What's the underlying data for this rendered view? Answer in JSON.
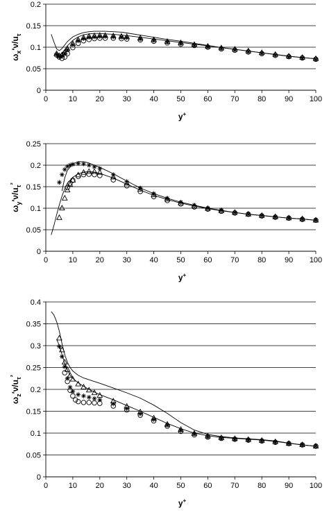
{
  "chart_data": [
    {
      "type": "scatter",
      "xlabel": "y+",
      "ylabel": "ωx′ν/uτ",
      "xlim": [
        0,
        100
      ],
      "ylim": [
        0,
        0.2
      ],
      "xticks": [
        "0",
        "10",
        "20",
        "30",
        "40",
        "50",
        "60",
        "70",
        "80",
        "90",
        "100"
      ],
      "yticks": [
        "0",
        "0.05",
        "0.1",
        "0.15",
        "0.2"
      ],
      "grid": "horizontal",
      "series": [
        {
          "marker": "line",
          "x": [
            2,
            3,
            4,
            5,
            6,
            7,
            8,
            10,
            12,
            14,
            16,
            18,
            20,
            22,
            25,
            28,
            30,
            35,
            40,
            45,
            50,
            55,
            60,
            65,
            70,
            75,
            80,
            85,
            90,
            95,
            100
          ],
          "y": [
            0.13,
            0.112,
            0.096,
            0.092,
            0.097,
            0.105,
            0.113,
            0.124,
            0.13,
            0.134,
            0.136,
            0.137,
            0.137,
            0.137,
            0.136,
            0.135,
            0.133,
            0.128,
            0.123,
            0.118,
            0.114,
            0.109,
            0.104,
            0.099,
            0.095,
            0.091,
            0.087,
            0.083,
            0.079,
            0.076,
            0.073
          ]
        },
        {
          "marker": "line",
          "x": [
            4,
            5,
            6,
            7,
            8,
            10,
            12,
            14,
            16,
            18,
            20,
            22,
            25,
            28,
            30,
            35,
            40,
            45,
            50,
            55,
            60,
            65,
            70,
            75,
            80,
            85,
            90,
            95,
            100
          ],
          "y": [
            0.085,
            0.082,
            0.086,
            0.094,
            0.103,
            0.116,
            0.124,
            0.129,
            0.131,
            0.132,
            0.132,
            0.131,
            0.13,
            0.128,
            0.127,
            0.123,
            0.119,
            0.115,
            0.111,
            0.107,
            0.103,
            0.099,
            0.095,
            0.091,
            0.087,
            0.083,
            0.079,
            0.076,
            0.073
          ]
        },
        {
          "marker": "triangle",
          "x": [
            4,
            5,
            6,
            7,
            8,
            10,
            12,
            14,
            16,
            18,
            20,
            22,
            25,
            28,
            30,
            35,
            40,
            45,
            50,
            55,
            60,
            65,
            70,
            75,
            80,
            85,
            90,
            95,
            100
          ],
          "y": [
            0.085,
            0.08,
            0.082,
            0.088,
            0.096,
            0.108,
            0.117,
            0.122,
            0.125,
            0.126,
            0.127,
            0.127,
            0.126,
            0.125,
            0.124,
            0.121,
            0.117,
            0.113,
            0.11,
            0.106,
            0.102,
            0.098,
            0.095,
            0.091,
            0.087,
            0.083,
            0.079,
            0.076,
            0.073
          ]
        },
        {
          "marker": "star",
          "x": [
            4,
            5,
            6,
            7,
            8,
            10,
            12,
            14,
            16,
            18,
            20,
            22,
            25,
            28,
            30,
            35,
            40,
            45,
            50,
            55,
            60,
            65,
            70,
            75,
            80,
            85,
            90,
            95,
            100
          ],
          "y": [
            0.083,
            0.078,
            0.08,
            0.086,
            0.094,
            0.106,
            0.115,
            0.12,
            0.123,
            0.124,
            0.125,
            0.125,
            0.124,
            0.123,
            0.122,
            0.119,
            0.116,
            0.112,
            0.109,
            0.105,
            0.101,
            0.097,
            0.094,
            0.09,
            0.086,
            0.082,
            0.078,
            0.075,
            0.072
          ]
        },
        {
          "marker": "circle",
          "x": [
            4,
            5,
            6,
            7,
            8,
            10,
            12,
            14,
            16,
            18,
            20,
            22,
            25,
            28,
            30,
            35,
            40,
            45,
            50,
            55,
            60,
            65,
            70,
            75,
            80,
            85,
            90,
            95,
            100
          ],
          "y": [
            0.082,
            0.077,
            0.074,
            0.077,
            0.085,
            0.099,
            0.109,
            0.115,
            0.118,
            0.12,
            0.121,
            0.121,
            0.121,
            0.12,
            0.119,
            0.117,
            0.114,
            0.11,
            0.107,
            0.104,
            0.1,
            0.096,
            0.093,
            0.089,
            0.085,
            0.081,
            0.078,
            0.075,
            0.072
          ]
        }
      ]
    },
    {
      "type": "scatter",
      "xlabel": "y+",
      "ylabel": "ωy′ν/uτ²",
      "xlim": [
        0,
        100
      ],
      "ylim": [
        0,
        0.25
      ],
      "xticks": [
        "0",
        "10",
        "20",
        "30",
        "40",
        "50",
        "60",
        "70",
        "80",
        "90",
        "100"
      ],
      "yticks": [
        "0",
        "0.05",
        "0.1",
        "0.15",
        "0.2",
        "0.25"
      ],
      "grid": "horizontal",
      "series": [
        {
          "marker": "line",
          "x": [
            2,
            3,
            4,
            5,
            6,
            7,
            8,
            10,
            12,
            14,
            16,
            18,
            20,
            25,
            30,
            35,
            40,
            45,
            50,
            55,
            60,
            65,
            70,
            75,
            80,
            85,
            90,
            95,
            100
          ],
          "y": [
            0.038,
            0.06,
            0.085,
            0.108,
            0.128,
            0.145,
            0.158,
            0.172,
            0.18,
            0.184,
            0.185,
            0.184,
            0.181,
            0.17,
            0.156,
            0.142,
            0.13,
            0.12,
            0.112,
            0.105,
            0.099,
            0.094,
            0.09,
            0.086,
            0.083,
            0.08,
            0.077,
            0.075,
            0.072
          ]
        },
        {
          "marker": "line",
          "x": [
            6,
            7,
            8,
            10,
            12,
            14,
            16,
            18,
            20,
            25,
            30,
            35,
            40,
            45,
            50,
            55,
            60,
            65,
            70,
            75,
            80,
            85,
            90,
            95,
            100
          ],
          "y": [
            0.14,
            0.17,
            0.188,
            0.203,
            0.208,
            0.208,
            0.205,
            0.2,
            0.195,
            0.18,
            0.163,
            0.147,
            0.134,
            0.123,
            0.114,
            0.107,
            0.1,
            0.095,
            0.09,
            0.086,
            0.083,
            0.08,
            0.077,
            0.075,
            0.072
          ]
        },
        {
          "marker": "triangle",
          "x": [
            5,
            6,
            7,
            8,
            9,
            10,
            12,
            14,
            16,
            18,
            20,
            25,
            30,
            35,
            40,
            45,
            50,
            55,
            60,
            65,
            70,
            75,
            80,
            85,
            90,
            95,
            100
          ],
          "y": [
            0.078,
            0.1,
            0.123,
            0.142,
            0.155,
            0.165,
            0.177,
            0.183,
            0.185,
            0.185,
            0.183,
            0.172,
            0.158,
            0.144,
            0.131,
            0.121,
            0.112,
            0.105,
            0.099,
            0.094,
            0.09,
            0.086,
            0.083,
            0.08,
            0.077,
            0.075,
            0.072
          ]
        },
        {
          "marker": "star",
          "x": [
            5,
            6,
            7,
            8,
            9,
            10,
            12,
            14,
            16,
            18,
            20,
            25,
            30,
            35,
            40,
            45,
            50,
            55,
            60,
            65,
            70,
            75,
            80,
            85,
            90,
            95,
            100
          ],
          "y": [
            0.16,
            0.178,
            0.19,
            0.197,
            0.2,
            0.202,
            0.204,
            0.203,
            0.2,
            0.196,
            0.192,
            0.178,
            0.162,
            0.147,
            0.134,
            0.123,
            0.114,
            0.107,
            0.1,
            0.095,
            0.09,
            0.086,
            0.083,
            0.08,
            0.077,
            0.075,
            0.072
          ]
        },
        {
          "marker": "circle",
          "x": [
            8,
            9,
            10,
            12,
            14,
            16,
            18,
            20,
            25,
            30,
            35,
            40,
            45,
            50,
            55,
            60,
            65,
            70,
            75,
            80,
            85,
            90,
            95,
            100
          ],
          "y": [
            0.148,
            0.158,
            0.165,
            0.174,
            0.178,
            0.179,
            0.178,
            0.176,
            0.166,
            0.152,
            0.139,
            0.127,
            0.118,
            0.11,
            0.103,
            0.098,
            0.093,
            0.089,
            0.086,
            0.082,
            0.079,
            0.077,
            0.074,
            0.072
          ]
        }
      ]
    },
    {
      "type": "scatter",
      "xlabel": "y+",
      "ylabel": "ωz′ν/uτ²",
      "xlim": [
        0,
        100
      ],
      "ylim": [
        0,
        0.4
      ],
      "xticks": [
        "0",
        "10",
        "20",
        "30",
        "40",
        "50",
        "60",
        "70",
        "80",
        "90",
        "100"
      ],
      "yticks": [
        "0",
        "0.05",
        "0.1",
        "0.15",
        "0.2",
        "0.25",
        "0.3",
        "0.35",
        "0.4"
      ],
      "grid": "horizontal",
      "series": [
        {
          "marker": "line",
          "x": [
            2,
            3,
            4,
            5,
            6,
            7,
            8,
            9,
            10,
            12,
            14,
            16,
            18,
            20,
            25,
            30,
            35,
            40,
            45,
            50,
            55,
            60,
            65,
            70,
            75,
            80,
            85,
            90,
            95,
            100
          ],
          "y": [
            0.378,
            0.37,
            0.355,
            0.333,
            0.305,
            0.28,
            0.262,
            0.25,
            0.242,
            0.232,
            0.226,
            0.222,
            0.218,
            0.214,
            0.203,
            0.192,
            0.18,
            0.164,
            0.145,
            0.124,
            0.107,
            0.097,
            0.092,
            0.089,
            0.087,
            0.085,
            0.082,
            0.077,
            0.073,
            0.07
          ]
        },
        {
          "marker": "line",
          "x": [
            4,
            5,
            6,
            7,
            8,
            9,
            10,
            12,
            14,
            16,
            18,
            20,
            25,
            30,
            35,
            40,
            45,
            50,
            55,
            60,
            65,
            70,
            75,
            80,
            85,
            90,
            95,
            100
          ],
          "y": [
            0.315,
            0.3,
            0.28,
            0.26,
            0.245,
            0.232,
            0.225,
            0.215,
            0.207,
            0.2,
            0.194,
            0.188,
            0.176,
            0.163,
            0.15,
            0.136,
            0.122,
            0.11,
            0.1,
            0.094,
            0.09,
            0.088,
            0.086,
            0.084,
            0.081,
            0.077,
            0.073,
            0.07
          ]
        },
        {
          "marker": "triangle",
          "x": [
            5,
            6,
            7,
            8,
            9,
            10,
            12,
            14,
            16,
            18,
            20,
            25,
            30,
            35,
            40,
            45,
            50,
            55,
            60,
            65,
            70,
            75,
            80,
            85,
            90,
            95,
            100
          ],
          "y": [
            0.317,
            0.29,
            0.262,
            0.245,
            0.232,
            0.223,
            0.212,
            0.205,
            0.198,
            0.192,
            0.186,
            0.173,
            0.161,
            0.148,
            0.134,
            0.12,
            0.108,
            0.099,
            0.093,
            0.089,
            0.087,
            0.085,
            0.083,
            0.08,
            0.076,
            0.073,
            0.07
          ]
        },
        {
          "marker": "star",
          "x": [
            5,
            6,
            7,
            8,
            9,
            10,
            12,
            14,
            16,
            18,
            20,
            25,
            30,
            35,
            40,
            45,
            50,
            55,
            60,
            65,
            70,
            75,
            80,
            85,
            90,
            95,
            100
          ],
          "y": [
            0.298,
            0.275,
            0.252,
            0.225,
            0.205,
            0.195,
            0.188,
            0.185,
            0.182,
            0.179,
            0.176,
            0.167,
            0.156,
            0.144,
            0.131,
            0.118,
            0.106,
            0.098,
            0.092,
            0.088,
            0.086,
            0.084,
            0.082,
            0.079,
            0.076,
            0.073,
            0.07
          ]
        },
        {
          "marker": "circle",
          "x": [
            7,
            8,
            9,
            10,
            11,
            12,
            14,
            16,
            18,
            20,
            25,
            30,
            35,
            40,
            45,
            50,
            55,
            60,
            65,
            70,
            75,
            80,
            85,
            90,
            95,
            100
          ],
          "y": [
            0.238,
            0.218,
            0.198,
            0.185,
            0.176,
            0.172,
            0.17,
            0.17,
            0.169,
            0.168,
            0.162,
            0.153,
            0.141,
            0.128,
            0.116,
            0.104,
            0.096,
            0.091,
            0.088,
            0.086,
            0.084,
            0.082,
            0.079,
            0.076,
            0.073,
            0.07
          ]
        }
      ]
    }
  ]
}
